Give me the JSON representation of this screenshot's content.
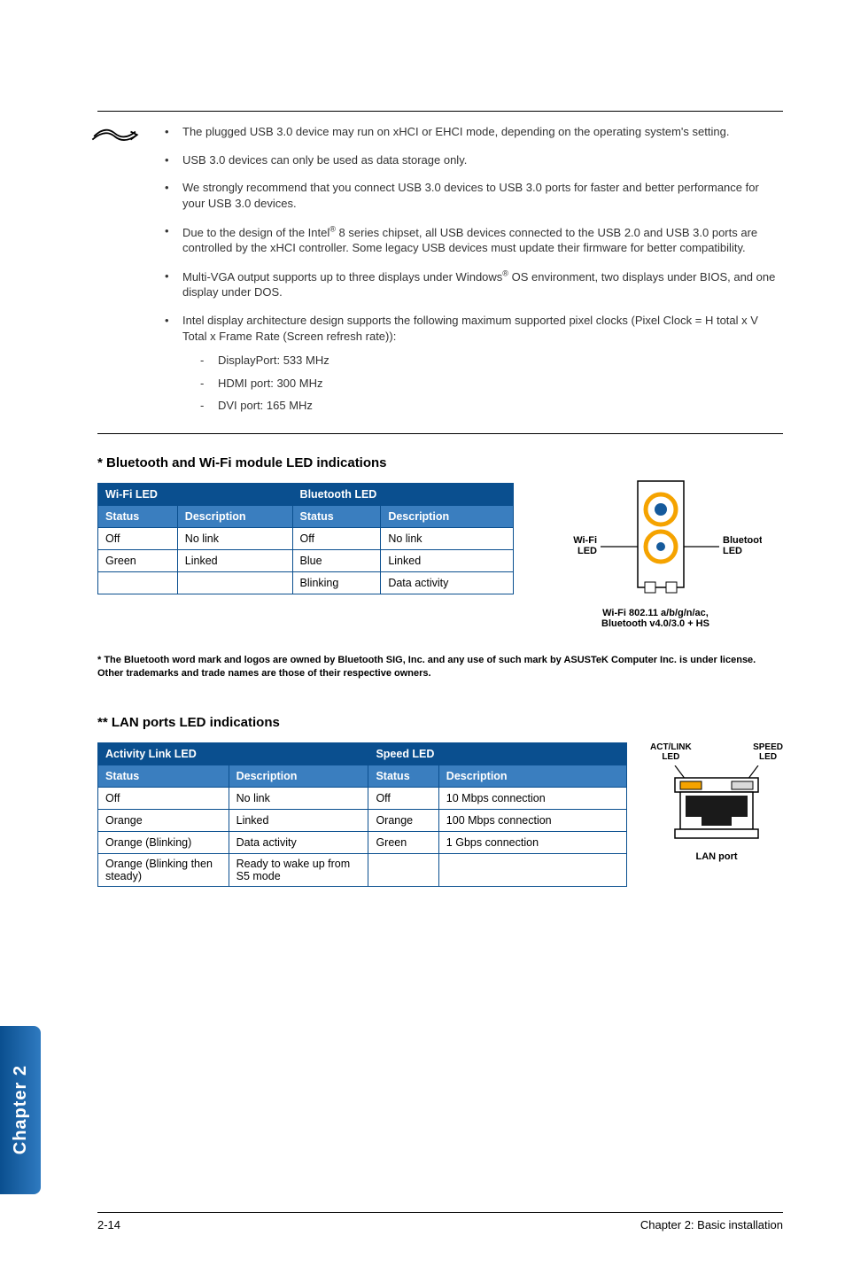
{
  "notes": {
    "items": [
      "The plugged USB 3.0 device may run on xHCI or EHCI mode, depending on the operating system's setting.",
      "USB 3.0 devices can only be used as data storage only.",
      "We strongly recommend that you connect USB 3.0 devices to USB 3.0 ports for faster and better performance for your USB 3.0 devices.",
      "Due to the design of the Intel® 8 series chipset, all USB devices connected to the USB 2.0 and USB 3.0 ports are controlled by the xHCI controller. Some legacy USB devices must update their firmware for better compatibility.",
      "Multi-VGA output supports up to three displays under Windows® OS environment, two displays under BIOS, and one display under DOS.",
      "Intel display architecture design supports the following maximum supported pixel clocks (Pixel Clock = H total x V Total x Frame Rate (Screen refresh rate)):"
    ],
    "subitems": [
      "DisplayPort:  533 MHz",
      "HDMI port: 300 MHz",
      " DVI port:  165 MHz"
    ]
  },
  "bt_section": {
    "heading": "* Bluetooth and Wi-Fi module LED indications",
    "wifi_led_header": "Wi-Fi LED",
    "bt_led_header": "Bluetooth LED",
    "col_status": "Status",
    "col_desc": "Description",
    "rows": [
      {
        "ws": "Off",
        "wd": "No link",
        "bs": "Off",
        "bd": "No link"
      },
      {
        "ws": "Green",
        "wd": "Linked",
        "bs": "Blue",
        "bd": "Linked"
      },
      {
        "ws": "",
        "wd": "",
        "bs": "Blinking",
        "bd": "Data activity"
      }
    ],
    "diagram": {
      "wifi_label": "Wi-Fi LED",
      "bt_label": "Bluetooth LED",
      "caption_l1": "Wi-Fi 802.11 a/b/g/n/ac,",
      "caption_l2": "Bluetooth v4.0/3.0 + HS",
      "colors": {
        "outer_ring": "#f5a300",
        "inner_fill": "#155a9c"
      }
    },
    "fineprint": "* The Bluetooth word mark and logos are owned by Bluetooth SIG, Inc. and any use of such mark by ASUSTeK Computer Inc. is under license. Other trademarks and trade names are those of their respective owners."
  },
  "lan_section": {
    "heading": "** LAN ports LED indications",
    "activity_header": "Activity Link LED",
    "speed_header": "Speed LED",
    "col_status": "Status",
    "col_desc": "Description",
    "rows": [
      {
        "as": "Off",
        "ad": "No link",
        "ss": "Off",
        "sd": "10 Mbps connection"
      },
      {
        "as": "Orange",
        "ad": "Linked",
        "ss": "Orange",
        "sd": "100 Mbps connection"
      },
      {
        "as": "Orange (Blinking)",
        "ad": "Data activity",
        "ss": "Green",
        "sd": "1 Gbps connection"
      },
      {
        "as": "Orange (Blinking then steady)",
        "ad": "Ready to wake up from S5 mode",
        "ss": "",
        "sd": ""
      }
    ],
    "diagram": {
      "act_label_l1": "ACT/LINK",
      "act_label_l2": "LED",
      "speed_label_l1": "SPEED",
      "speed_label_l2": "LED",
      "port_caption": "LAN port",
      "colors": {
        "act_led": "#f5a300",
        "speed_led": "#d9d9d9",
        "port_fill": "#1a1a1a"
      }
    }
  },
  "chapter_tab": "Chapter 2",
  "footer": {
    "left": "2-14",
    "right": "Chapter 2: Basic installation"
  },
  "palette": {
    "table_border": "#0a4f8f",
    "table_hdr1_bg": "#0a4f8f",
    "table_hdr2_bg": "#3a7ebf",
    "tab_grad_from": "#0a4f8f",
    "tab_grad_to": "#2f7ac0"
  }
}
